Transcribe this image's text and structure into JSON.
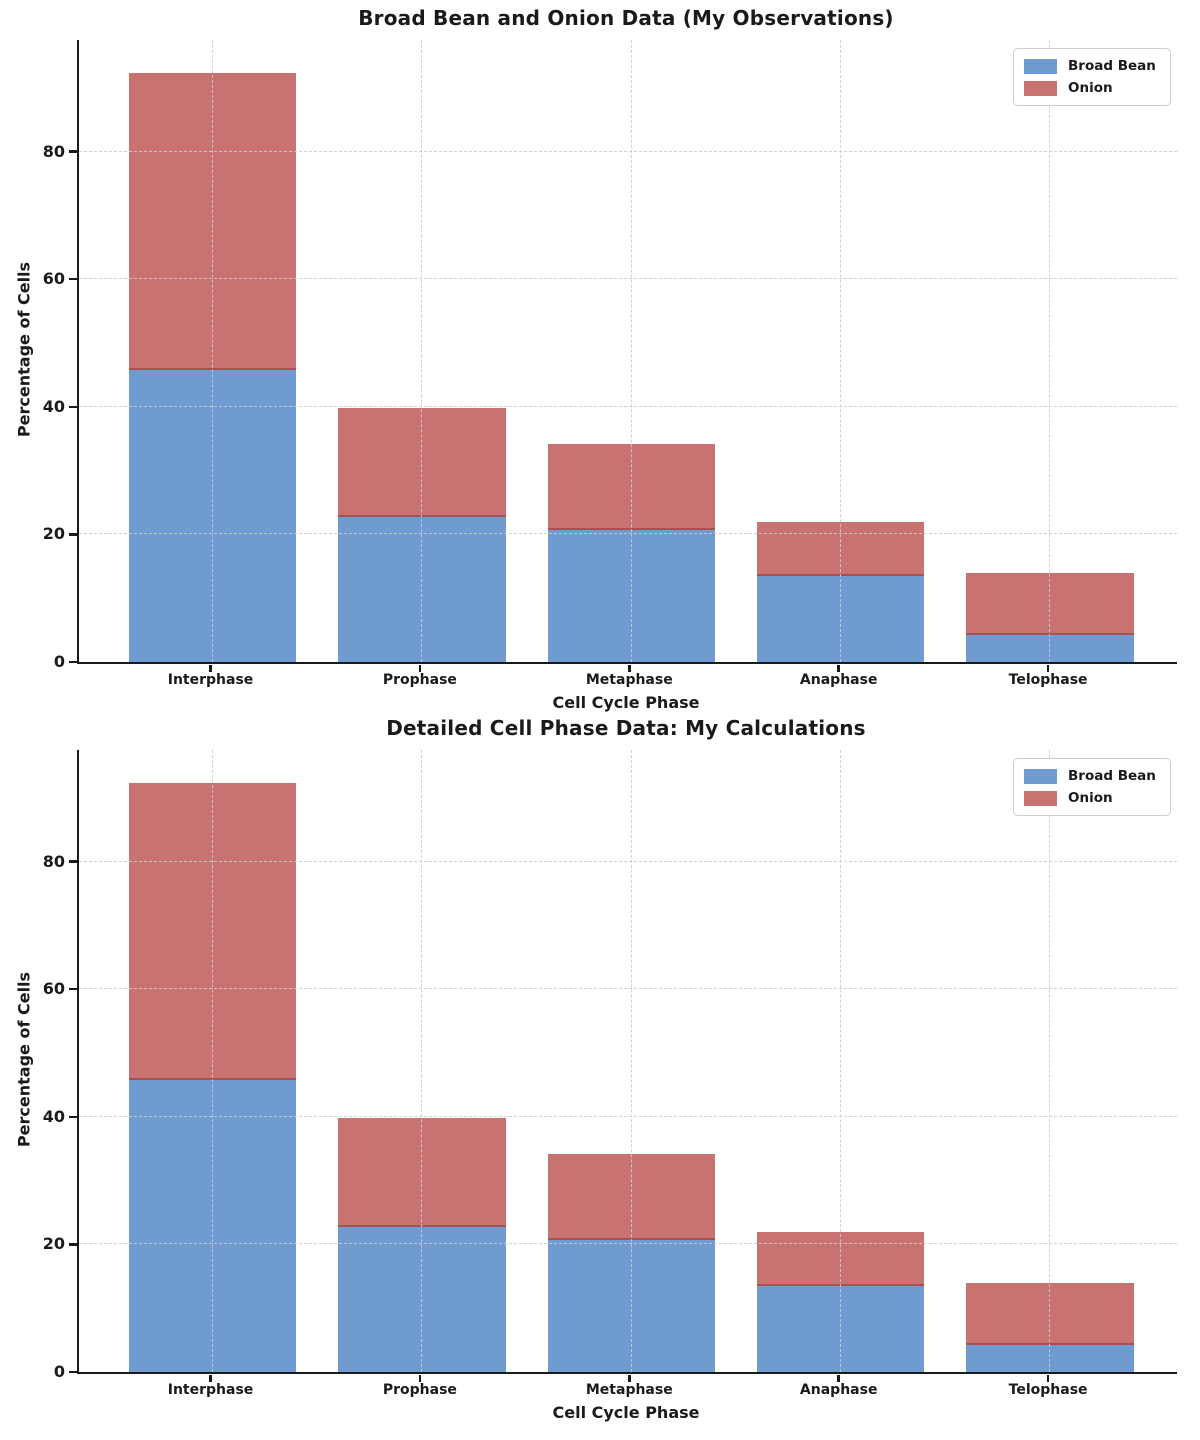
{
  "figure": {
    "background": "#ffffff",
    "text_color": "#1a1a1a",
    "grid_color": "#cccccc",
    "axis_color": "#1a1a1a",
    "stack_divider_color": "#945050"
  },
  "chart_data": [
    {
      "type": "bar",
      "stacked": true,
      "title": "Broad Bean and Onion Data (My Observations)",
      "xlabel": "Cell Cycle Phase",
      "ylabel": "Percentage of Cells",
      "categories": [
        "Interphase",
        "Prophase",
        "Metaphase",
        "Anaphase",
        "Telophase"
      ],
      "series": [
        {
          "name": "Broad Bean",
          "color": "#6f9bd1",
          "values": [
            45.8,
            22.7,
            20.7,
            13.5,
            4.3
          ]
        },
        {
          "name": "Onion",
          "color": "#c87272",
          "values": [
            46.5,
            17.1,
            13.5,
            8.4,
            9.6
          ]
        }
      ],
      "totals": [
        92.3,
        39.8,
        34.2,
        21.9,
        13.9
      ],
      "yticks": [
        0,
        20,
        40,
        60,
        80
      ],
      "ylim": [
        0,
        97.5
      ],
      "bar_width_fraction": 0.8,
      "grid": {
        "visible": true,
        "style": "dashed",
        "axes": "both"
      },
      "legend": {
        "position": "upper-right",
        "entries": [
          "Broad Bean",
          "Onion"
        ]
      }
    },
    {
      "type": "bar",
      "stacked": true,
      "title": "Detailed Cell Phase Data: My Calculations",
      "xlabel": "Cell Cycle Phase",
      "ylabel": "Percentage of Cells",
      "categories": [
        "Interphase",
        "Prophase",
        "Metaphase",
        "Anaphase",
        "Telophase"
      ],
      "series": [
        {
          "name": "Broad Bean",
          "color": "#6f9bd1",
          "values": [
            45.8,
            22.7,
            20.7,
            13.5,
            4.3
          ]
        },
        {
          "name": "Onion",
          "color": "#c87272",
          "values": [
            46.5,
            17.1,
            13.5,
            8.4,
            9.6
          ]
        }
      ],
      "totals": [
        92.3,
        39.8,
        34.2,
        21.9,
        13.9
      ],
      "yticks": [
        0,
        20,
        40,
        60,
        80
      ],
      "ylim": [
        0,
        97.5
      ],
      "bar_width_fraction": 0.8,
      "grid": {
        "visible": true,
        "style": "dashed",
        "axes": "both"
      },
      "legend": {
        "position": "upper-right",
        "entries": [
          "Broad Bean",
          "Onion"
        ]
      }
    }
  ]
}
